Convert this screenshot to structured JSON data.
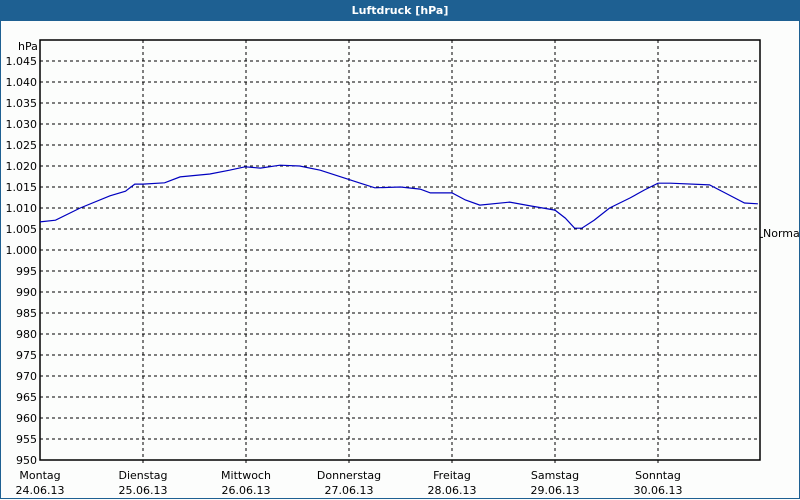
{
  "window": {
    "title": "Luftdruck [hPa]"
  },
  "chart_data": {
    "type": "line",
    "title": "Luftdruck [hPa]",
    "ylabel": "hPa",
    "xlabel": "",
    "ylim": [
      950,
      1050
    ],
    "yticks": [
      "950",
      "955",
      "960",
      "965",
      "970",
      "975",
      "980",
      "985",
      "990",
      "995",
      "1.000",
      "1.005",
      "1.010",
      "1.015",
      "1.020",
      "1.025",
      "1.030",
      "1.035",
      "1.040",
      "1.045"
    ],
    "categories": [
      {
        "day": "Montag",
        "date": "24.06.13"
      },
      {
        "day": "Dienstag",
        "date": "25.06.13"
      },
      {
        "day": "Mittwoch",
        "date": "26.06.13"
      },
      {
        "day": "Donnerstag",
        "date": "27.06.13"
      },
      {
        "day": "Freitag",
        "date": "28.06.13"
      },
      {
        "day": "Samstag",
        "date": "29.06.13"
      },
      {
        "day": "Sonntag",
        "date": "30.06.13"
      }
    ],
    "annotation": {
      "label": "Normal",
      "value": 1003
    },
    "grid": true,
    "series": [
      {
        "name": "Luftdruck",
        "color": "#0000c0",
        "x_days": [
          0,
          0.15,
          0.39,
          0.68,
          0.83,
          0.92,
          1.0,
          1.21,
          1.36,
          1.65,
          1.84,
          1.99,
          2.14,
          2.33,
          2.52,
          2.72,
          2.96,
          3.11,
          3.25,
          3.5,
          3.69,
          3.79,
          4.0,
          4.13,
          4.27,
          4.56,
          4.76,
          5.0,
          5.1,
          5.19,
          5.26,
          5.38,
          5.53,
          5.73,
          5.87,
          6.0,
          6.12,
          6.5,
          6.65,
          6.84,
          6.97
        ],
        "values": [
          1006.7,
          1007.1,
          1010,
          1012.9,
          1014,
          1015.7,
          1015.7,
          1016,
          1017.4,
          1018.1,
          1019,
          1019.8,
          1019.5,
          1020.2,
          1020,
          1019,
          1017.1,
          1015.9,
          1014.8,
          1015,
          1014.5,
          1013.6,
          1013.6,
          1011.9,
          1010.7,
          1011.4,
          1010.5,
          1009.5,
          1007.6,
          1005.2,
          1005.2,
          1007.1,
          1010,
          1012.4,
          1014.3,
          1015.9,
          1015.9,
          1015.5,
          1013.6,
          1011.2,
          1011
        ]
      }
    ]
  }
}
